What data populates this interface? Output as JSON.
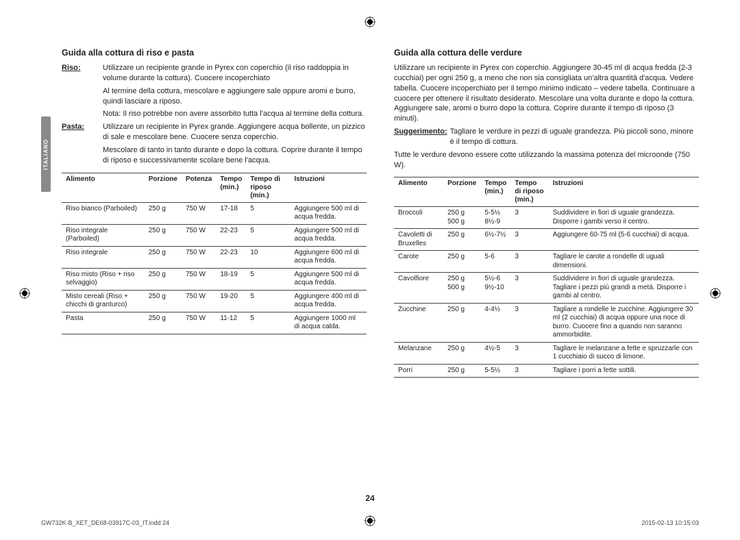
{
  "side_tab": "ITALIANO",
  "left": {
    "heading": "Guida alla cottura di riso e pasta",
    "riso_label": "Riso",
    "riso_p1": "Utilizzare un recipiente grande in Pyrex con coperchio (il riso raddoppia in volume durante la cottura). Cuocere incoperchiato",
    "riso_p2": "Al termine della cottura, mescolare e aggiungere sale oppure aromi e burro, quindi lasciare a riposo.",
    "riso_p3": "Nota: Il riso potrebbe non avere assorbito tutta l'acqua al termine della cottura.",
    "pasta_label": "Pasta",
    "pasta_p1": "Utilizzare un recipiente in Pyrex grande. Aggiungere acqua bollente, un pizzico di sale e mescolare bene. Cuocere senza coperchio.",
    "pasta_p2": "Mescolare di tanto in tanto durante e dopo la cottura. Coprire durante il tempo di riposo e successivamente scolare bene l'acqua.",
    "table": {
      "columns": [
        "Alimento",
        "Porzione",
        "Potenza",
        "Tempo (min.)",
        "Tempo di riposo (min.)",
        "Istruzioni"
      ],
      "rows": [
        [
          "Riso bianco (Parboiled)",
          "250 g",
          "750 W",
          "17-18",
          "5",
          "Aggiungere 500 ml di acqua fredda."
        ],
        [
          "Riso integrale (Parboiled)",
          "250 g",
          "750 W",
          "22-23",
          "5",
          "Aggiungere 500 ml di acqua fredda."
        ],
        [
          "Riso integrale",
          "250 g",
          "750 W",
          "22-23",
          "10",
          "Aggiungere 600 ml di acqua fredda."
        ],
        [
          "Riso misto (Riso + riso selvaggio)",
          "250 g",
          "750 W",
          "18-19",
          "5",
          "Aggiungere 500 ml di acqua fredda."
        ],
        [
          "Misto cereali (Riso + chicchi di granturco)",
          "250 g",
          "750 W",
          "19-20",
          "5",
          "Aggiungere 400 ml di acqua fredda."
        ],
        [
          "Pasta",
          "250 g",
          "750 W",
          "11-12",
          "5",
          "Aggiungere 1000 ml di acqua calda."
        ]
      ]
    }
  },
  "right": {
    "heading": "Guida alla cottura delle verdure",
    "p1": "Utilizzare un recipiente in Pyrex con coperchio. Aggiungere 30-45 ml di acqua fredda (2-3 cucchiai) per ogni 250 g, a meno che non sia consigliata un'altra quantità d'acqua. Vedere tabella. Cuocere incoperchiato per il tempo minimo indicato – vedere tabella. Continuare a cuocere per ottenere il risultato desiderato. Mescolare una volta durante e dopo la cottura. Aggiungere sale, aromi o burro dopo la cottura. Coprire durante il tempo di riposo (3 minuti).",
    "tip_label": "Suggerimento",
    "tip_text": "Tagliare le verdure in pezzi di uguale grandezza. Più piccoli sono, minore è il tempo di cottura.",
    "p3": "Tutte le verdure devono essere cotte utilizzando la massima potenza del microonde (750 W).",
    "table": {
      "columns": [
        "Alimento",
        "Porzione",
        "Tempo (min.)",
        "Tempo di riposo (min.)",
        "Istruzioni"
      ],
      "rows": [
        [
          "Broccoli",
          "250 g\n500 g",
          "5-5½\n8½-9",
          "3",
          "Suddividere in fiori di uguale grandezza. Disporre i gambi verso il centro."
        ],
        [
          "Cavoletti di Bruxelles",
          "250 g",
          "6½-7½",
          "3",
          "Aggiungere 60-75 ml (5-6 cucchiai) di acqua."
        ],
        [
          "Carote",
          "250 g",
          "5-6",
          "3",
          "Tagliare le carote a rondelle di uguali dimensioni."
        ],
        [
          "Cavolfiore",
          "250 g\n500 g",
          "5½-6\n9½-10",
          "3",
          "Suddividere in fiori di uguale grandezza. Tagliare i pezzi più grandi a metà. Disporre i gambi al centro."
        ],
        [
          "Zucchine",
          "250 g",
          "4-4½",
          "3",
          "Tagliare a rondelle le zucchine. Aggiungere 30 ml (2 cucchiai) di acqua oppure una noce di burro. Cuocere fino a quando non saranno ammorbidite."
        ],
        [
          "Melanzane",
          "250 g",
          "4½-5",
          "3",
          "Tagliare le melanzane a fette e spruzzarle con 1 cucchiaio di succo di limone."
        ],
        [
          "Porri",
          "250 g",
          "5-5½",
          "3",
          "Tagliare i porri a fette sottili."
        ]
      ]
    }
  },
  "page_number": "24",
  "footer_left": "GW732K-B_XET_DE68-03917C-03_IT.indd   24",
  "footer_right": "2015-02-13        10:15:03"
}
